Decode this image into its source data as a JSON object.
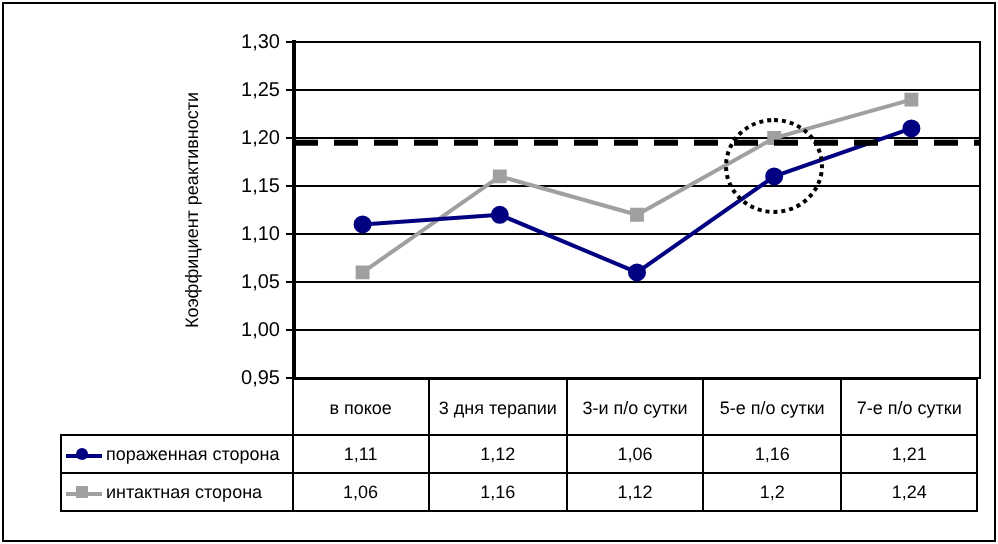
{
  "chart_data": {
    "type": "line",
    "ylabel": "Коэффициент реактивности",
    "categories": [
      "в покое",
      "3 дня терапии",
      "3-и п/о сутки",
      "5-е п/о сутки",
      "7-е п/о сутки"
    ],
    "series": [
      {
        "name": "пораженная сторона",
        "color": "#000080",
        "marker": "circle",
        "values": [
          1.11,
          1.12,
          1.06,
          1.16,
          1.21
        ],
        "value_labels": [
          "1,11",
          "1,12",
          "1,06",
          "1,16",
          "1,21"
        ]
      },
      {
        "name": "интактная сторона",
        "color": "#a0a0a0",
        "marker": "square",
        "values": [
          1.06,
          1.16,
          1.12,
          1.2,
          1.24
        ],
        "value_labels": [
          "1,06",
          "1,16",
          "1,12",
          "1,2",
          "1,24"
        ]
      }
    ],
    "ylim": [
      0.95,
      1.3
    ],
    "yticks": [
      {
        "value": 0.95,
        "label": "0,95"
      },
      {
        "value": 1.0,
        "label": "1,00"
      },
      {
        "value": 1.05,
        "label": "1,05"
      },
      {
        "value": 1.1,
        "label": "1,10"
      },
      {
        "value": 1.15,
        "label": "1,15"
      },
      {
        "value": 1.2,
        "label": "1,20"
      },
      {
        "value": 1.25,
        "label": "1,25"
      },
      {
        "value": 1.3,
        "label": "1,30"
      }
    ],
    "ref_lines": [
      {
        "axis": "y",
        "value": 1.195,
        "color": "#000000",
        "line_style": "dashed"
      }
    ],
    "grid": "y",
    "legend": "bottom",
    "line_style": "solid"
  }
}
